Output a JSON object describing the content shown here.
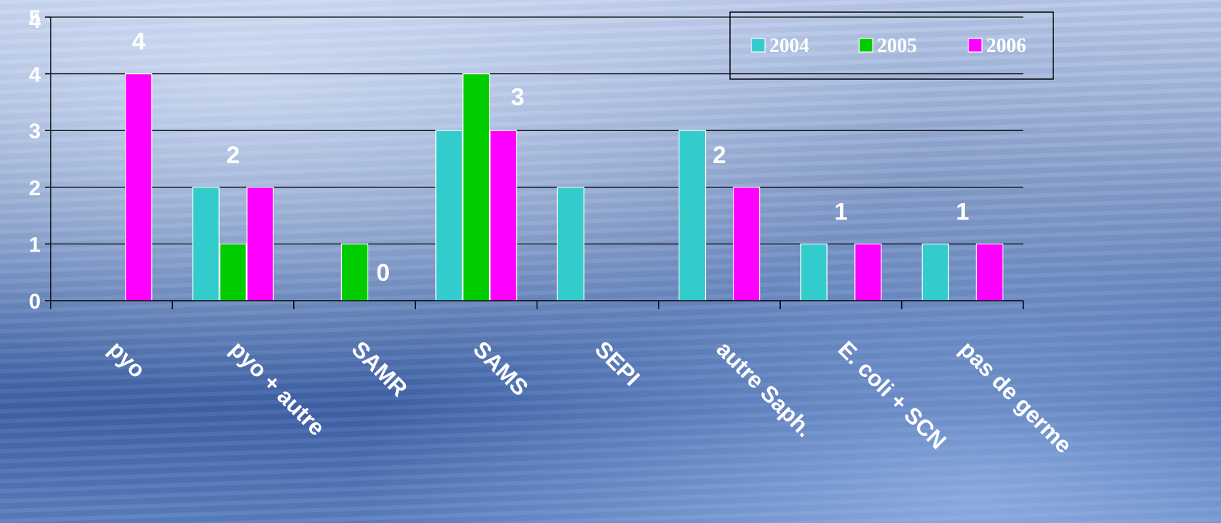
{
  "chart_data": {
    "type": "bar",
    "categories": [
      "pyo",
      "pyo + autre",
      "SAMR",
      "SAMS",
      "SEPI",
      "autre Saph.",
      "E. coli + SCN",
      "pas de germe"
    ],
    "series": [
      {
        "name": "2004",
        "color": "#33cccc",
        "values": [
          0,
          2,
          0,
          3,
          2,
          3,
          1,
          1
        ]
      },
      {
        "name": "2005",
        "color": "#00cc00",
        "values": [
          0,
          1,
          1,
          4,
          0,
          0,
          0,
          0
        ]
      },
      {
        "name": "2006",
        "color": "#ff00ff",
        "values": [
          4,
          2,
          0,
          3,
          0,
          2,
          1,
          1
        ]
      }
    ],
    "y_ticks": [
      "0",
      "1",
      "2",
      "3",
      "4",
      "4",
      "5"
    ],
    "ylim": [
      0,
      5
    ],
    "grid": true,
    "legend_position": "top-right",
    "data_labels": [
      {
        "category_index": 0,
        "value": 4,
        "text": "4"
      },
      {
        "category_index": 1,
        "value": 2,
        "text": "2"
      },
      {
        "category_index": 2,
        "value": 0,
        "text": "0"
      },
      {
        "category_index": 3,
        "value": 3,
        "text": "3"
      },
      {
        "category_index": 5,
        "value": 2,
        "text": "2"
      },
      {
        "category_index": 6,
        "value": 1,
        "text": "1"
      },
      {
        "category_index": 7,
        "value": 1,
        "text": "1"
      }
    ]
  }
}
